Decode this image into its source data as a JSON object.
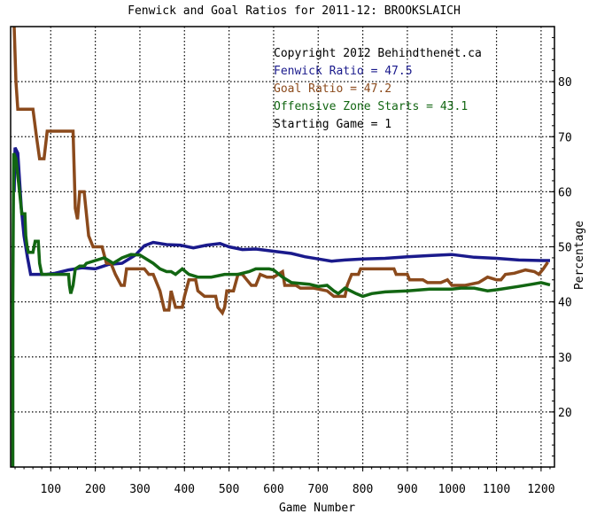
{
  "chart_data": {
    "type": "line",
    "title": "Fenwick and Goal Ratios for 2011-12: BROOKSLAICH",
    "xlabel": "Game Number",
    "ylabel": "Percentage",
    "xlim": [
      10,
      1230
    ],
    "ylim": [
      10,
      90
    ],
    "x_ticks": [
      100,
      200,
      300,
      400,
      500,
      600,
      700,
      800,
      900,
      1000,
      1100,
      1200
    ],
    "y_ticks": [
      20,
      30,
      40,
      50,
      60,
      70,
      80
    ],
    "grid": true,
    "legend_placement": "top-right",
    "annotations": [
      {
        "text": "Copyright 2012 Behindthenet.ca",
        "color": "#000000"
      },
      {
        "text": "Fenwick Ratio = 47.5",
        "color": "#1a1a8c"
      },
      {
        "text": "Goal Ratio = 47.2",
        "color": "#8b4a1c"
      },
      {
        "text": "Offensive Zone Starts = 43.1",
        "color": "#126612"
      },
      {
        "text": "Starting Game = 1",
        "color": "#000000"
      }
    ],
    "series": [
      {
        "name": "Fenwick Ratio",
        "color": "#1a1a8c",
        "points": [
          [
            18,
            60
          ],
          [
            20,
            68
          ],
          [
            26,
            67
          ],
          [
            30,
            62
          ],
          [
            34,
            57
          ],
          [
            40,
            52
          ],
          [
            48,
            48
          ],
          [
            55,
            45
          ],
          [
            60,
            45
          ],
          [
            90,
            45
          ],
          [
            110,
            45.2
          ],
          [
            140,
            45.8
          ],
          [
            170,
            46.2
          ],
          [
            200,
            46
          ],
          [
            230,
            46.8
          ],
          [
            260,
            47
          ],
          [
            290,
            48.5
          ],
          [
            310,
            50.2
          ],
          [
            330,
            50.8
          ],
          [
            360,
            50.4
          ],
          [
            390,
            50.3
          ],
          [
            420,
            49.8
          ],
          [
            450,
            50.3
          ],
          [
            480,
            50.6
          ],
          [
            500,
            50
          ],
          [
            530,
            49.5
          ],
          [
            560,
            49.6
          ],
          [
            600,
            49.2
          ],
          [
            640,
            48.8
          ],
          [
            670,
            48.2
          ],
          [
            700,
            47.8
          ],
          [
            730,
            47.4
          ],
          [
            760,
            47.6
          ],
          [
            800,
            47.8
          ],
          [
            850,
            47.9
          ],
          [
            900,
            48.2
          ],
          [
            950,
            48.4
          ],
          [
            1000,
            48.6
          ],
          [
            1050,
            48.1
          ],
          [
            1100,
            47.9
          ],
          [
            1150,
            47.6
          ],
          [
            1200,
            47.5
          ],
          [
            1220,
            47.5
          ]
        ]
      },
      {
        "name": "Goal Ratio",
        "color": "#8b4a1c",
        "points": [
          [
            18,
            90
          ],
          [
            22,
            80
          ],
          [
            26,
            75
          ],
          [
            60,
            75
          ],
          [
            68,
            70
          ],
          [
            75,
            66
          ],
          [
            85,
            66
          ],
          [
            92,
            71
          ],
          [
            150,
            71
          ],
          [
            155,
            57
          ],
          [
            160,
            55
          ],
          [
            165,
            60
          ],
          [
            175,
            60
          ],
          [
            185,
            52
          ],
          [
            195,
            50
          ],
          [
            215,
            50
          ],
          [
            225,
            47
          ],
          [
            235,
            47
          ],
          [
            240,
            46
          ],
          [
            245,
            45
          ],
          [
            258,
            43
          ],
          [
            265,
            43
          ],
          [
            270,
            46
          ],
          [
            295,
            46
          ],
          [
            310,
            46
          ],
          [
            320,
            45
          ],
          [
            330,
            45
          ],
          [
            345,
            42
          ],
          [
            355,
            38.5
          ],
          [
            365,
            38.5
          ],
          [
            370,
            42
          ],
          [
            380,
            39
          ],
          [
            395,
            39
          ],
          [
            400,
            41
          ],
          [
            410,
            44
          ],
          [
            425,
            44
          ],
          [
            430,
            42
          ],
          [
            445,
            41
          ],
          [
            470,
            41
          ],
          [
            475,
            39
          ],
          [
            485,
            38
          ],
          [
            490,
            39
          ],
          [
            495,
            42
          ],
          [
            510,
            42
          ],
          [
            520,
            45
          ],
          [
            530,
            45
          ],
          [
            540,
            44
          ],
          [
            550,
            43
          ],
          [
            560,
            43
          ],
          [
            570,
            45
          ],
          [
            585,
            44.5
          ],
          [
            600,
            44.5
          ],
          [
            620,
            45.5
          ],
          [
            625,
            43
          ],
          [
            650,
            43
          ],
          [
            660,
            42.5
          ],
          [
            690,
            42.5
          ],
          [
            720,
            42
          ],
          [
            735,
            41
          ],
          [
            760,
            41
          ],
          [
            765,
            43
          ],
          [
            775,
            45
          ],
          [
            790,
            45
          ],
          [
            795,
            46
          ],
          [
            830,
            46
          ],
          [
            870,
            46
          ],
          [
            875,
            45
          ],
          [
            900,
            45
          ],
          [
            905,
            44
          ],
          [
            935,
            44
          ],
          [
            945,
            43.5
          ],
          [
            975,
            43.5
          ],
          [
            990,
            44
          ],
          [
            1000,
            43
          ],
          [
            1030,
            43
          ],
          [
            1060,
            43.5
          ],
          [
            1080,
            44.5
          ],
          [
            1100,
            44
          ],
          [
            1110,
            44
          ],
          [
            1120,
            45
          ],
          [
            1140,
            45.2
          ],
          [
            1165,
            45.8
          ],
          [
            1185,
            45.5
          ],
          [
            1195,
            45
          ],
          [
            1205,
            46
          ],
          [
            1215,
            47.2
          ]
        ]
      },
      {
        "name": "Offensive Zone Starts",
        "color": "#126612",
        "points": [
          [
            15,
            10
          ],
          [
            15,
            40
          ],
          [
            16,
            55
          ],
          [
            17,
            67
          ],
          [
            22,
            66
          ],
          [
            30,
            60
          ],
          [
            35,
            56
          ],
          [
            42,
            56
          ],
          [
            44,
            52
          ],
          [
            47,
            50
          ],
          [
            50,
            49
          ],
          [
            60,
            49
          ],
          [
            65,
            51
          ],
          [
            72,
            51
          ],
          [
            75,
            47
          ],
          [
            80,
            45
          ],
          [
            120,
            45
          ],
          [
            140,
            45
          ],
          [
            142,
            43
          ],
          [
            145,
            41.5
          ],
          [
            150,
            43
          ],
          [
            155,
            46
          ],
          [
            165,
            46.5
          ],
          [
            175,
            46.5
          ],
          [
            180,
            47
          ],
          [
            200,
            47.5
          ],
          [
            220,
            48
          ],
          [
            240,
            47
          ],
          [
            260,
            48
          ],
          [
            280,
            48.6
          ],
          [
            300,
            48.5
          ],
          [
            320,
            47.5
          ],
          [
            330,
            47
          ],
          [
            345,
            46
          ],
          [
            360,
            45.5
          ],
          [
            370,
            45.5
          ],
          [
            380,
            45
          ],
          [
            395,
            46
          ],
          [
            410,
            45
          ],
          [
            430,
            44.5
          ],
          [
            460,
            44.5
          ],
          [
            490,
            45
          ],
          [
            520,
            45
          ],
          [
            545,
            45.5
          ],
          [
            560,
            46
          ],
          [
            590,
            46
          ],
          [
            600,
            45.8
          ],
          [
            620,
            44.5
          ],
          [
            640,
            43.5
          ],
          [
            680,
            43.2
          ],
          [
            700,
            42.8
          ],
          [
            720,
            43
          ],
          [
            735,
            42
          ],
          [
            745,
            41.5
          ],
          [
            760,
            42.5
          ],
          [
            785,
            41.5
          ],
          [
            800,
            41
          ],
          [
            820,
            41.5
          ],
          [
            850,
            41.8
          ],
          [
            900,
            42
          ],
          [
            950,
            42.3
          ],
          [
            1000,
            42.3
          ],
          [
            1020,
            42.5
          ],
          [
            1050,
            42.5
          ],
          [
            1080,
            42
          ],
          [
            1100,
            42.2
          ],
          [
            1150,
            42.8
          ],
          [
            1180,
            43.2
          ],
          [
            1200,
            43.5
          ],
          [
            1220,
            43.1
          ]
        ]
      }
    ]
  }
}
